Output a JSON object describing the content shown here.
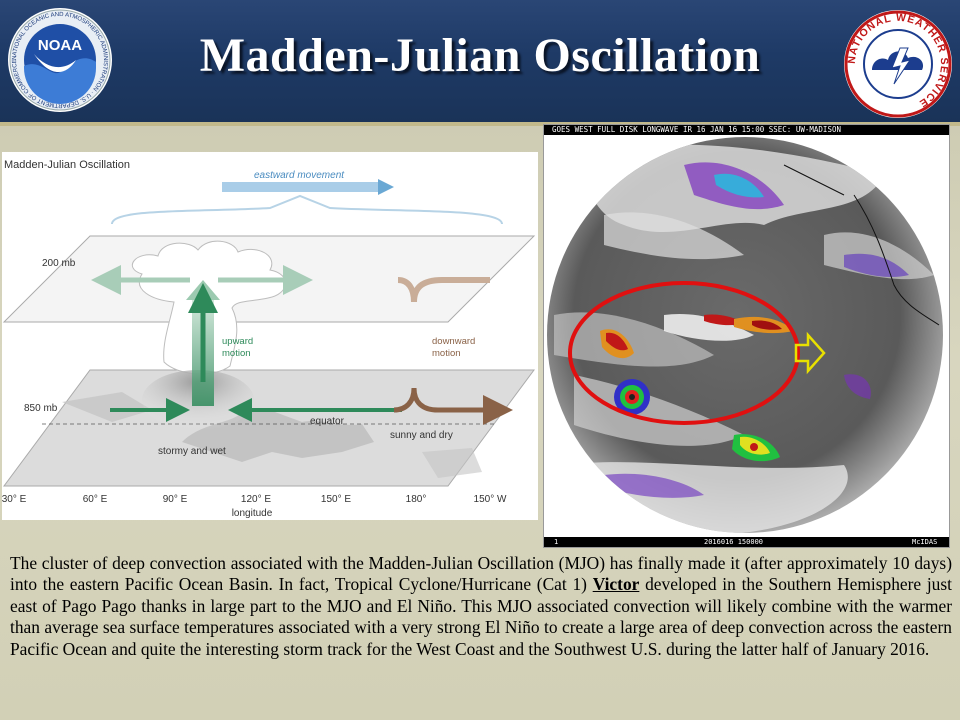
{
  "header": {
    "title": "Madden-Julian Oscillation",
    "noaa_logo_text": "NOAA",
    "noaa_ring_text": "NATIONAL OCEANIC AND ATMOSPHERIC ADMINISTRATION · U.S. DEPARTMENT OF COMMERCE",
    "nws_ring_text": "NATIONAL WEATHER SERVICE"
  },
  "diagram": {
    "title": "Madden-Julian Oscillation",
    "eastward_label": "eastward movement",
    "upper_level": "200 mb",
    "lower_level": "850 mb",
    "upward_label_1": "upward",
    "upward_label_2": "motion",
    "downward_label_1": "downward",
    "downward_label_2": "motion",
    "equator_label": "equator",
    "stormy_label": "stormy and wet",
    "sunny_label": "sunny and dry",
    "longitudes": [
      "30° E",
      "60° E",
      "90° E",
      "120° E",
      "150° E",
      "180°",
      "150° W"
    ],
    "axis_label": "longitude"
  },
  "satellite": {
    "header_text": "GOES WEST FULL DISK LONGWAVE IR 16 JAN 16 15:00 SSEC: UW-MADISON",
    "footer_left": "1",
    "footer_center": "2016016 150000",
    "footer_right": "McIDAS"
  },
  "caption": {
    "part1": "The cluster of deep convection associated with the Madden-Julian Oscillation (MJO) has finally made it (after approximately 10 days) into the eastern Pacific Ocean Basin. In fact, Tropical Cyclone/Hurricane (Cat 1) ",
    "storm_name": "Victor",
    "part2": " developed in the Southern Hemisphere just east of Pago Pago thanks in large part to the MJO and El Niño. This MJO associated convection will likely combine with the warmer than average sea surface temperatures associated with a very strong El Niño to create a large area of deep convection across the eastern Pacific Ocean and quite the interesting storm track for the West Coast and the Southwest U.S. during the latter half of January 2016."
  },
  "colors": {
    "header_bg": "#1e3a66",
    "slide_bg": "#d2d0b6",
    "upward_arrow": "#2e8a5a",
    "downward_arrow": "#8a6247",
    "eastward_arrow": "#6aa8d4",
    "circle_outline": "#e01010",
    "arrow_outline": "#e8e000"
  }
}
